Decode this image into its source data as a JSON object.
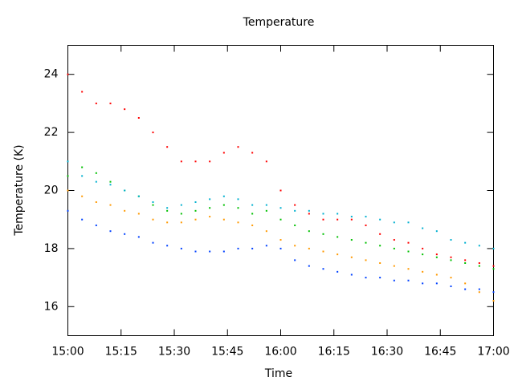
{
  "chart_data": {
    "type": "scatter",
    "title": "Temperature",
    "x_label": "Time",
    "y_label": "Temperature (K)",
    "x": [
      "15:00",
      "15:04",
      "15:08",
      "15:12",
      "15:16",
      "15:20",
      "15:24",
      "15:28",
      "15:32",
      "15:36",
      "15:40",
      "15:44",
      "15:48",
      "15:52",
      "15:56",
      "16:00",
      "16:04",
      "16:08",
      "16:12",
      "16:16",
      "16:20",
      "16:24",
      "16:28",
      "16:32",
      "16:36",
      "16:40",
      "16:44",
      "16:48",
      "16:52",
      "16:56",
      "17:00"
    ],
    "series": [
      {
        "color": "#ff0000",
        "values": [
          24,
          23.4,
          23,
          23,
          22.8,
          22.5,
          22,
          21.5,
          21,
          21,
          21,
          21.3,
          21.5,
          21.3,
          21,
          20,
          19.5,
          19.2,
          19,
          19,
          19,
          18.8,
          18.5,
          18.3,
          18.2,
          18,
          17.8,
          17.7,
          17.6,
          17.5,
          17.4
        ]
      },
      {
        "color": "#00c000",
        "values": [
          20.5,
          20.8,
          20.6,
          20.3,
          20,
          19.8,
          19.5,
          19.3,
          19.2,
          19.3,
          19.4,
          19.5,
          19.4,
          19.2,
          19.3,
          19,
          18.8,
          18.6,
          18.5,
          18.4,
          18.3,
          18.2,
          18.1,
          18,
          17.9,
          17.8,
          17.7,
          17.6,
          17.5,
          17.4,
          17.3
        ]
      },
      {
        "color": "#00b0d0",
        "values": [
          21,
          20.5,
          20.3,
          20.2,
          20,
          19.8,
          19.6,
          19.4,
          19.5,
          19.6,
          19.7,
          19.8,
          19.7,
          19.5,
          19.5,
          19.4,
          19.3,
          19.3,
          19.2,
          19.2,
          19.1,
          19.1,
          19,
          18.9,
          18.9,
          18.7,
          18.6,
          18.3,
          18.2,
          18.1,
          18
        ]
      },
      {
        "color": "#ff9900",
        "values": [
          20,
          19.8,
          19.6,
          19.5,
          19.3,
          19.2,
          19,
          18.9,
          18.9,
          19,
          19.1,
          19,
          18.9,
          18.8,
          18.6,
          18.3,
          18.1,
          18,
          17.9,
          17.8,
          17.7,
          17.6,
          17.5,
          17.4,
          17.3,
          17.2,
          17.1,
          17,
          16.8,
          16.5,
          16.2
        ]
      },
      {
        "color": "#0040ff",
        "values": [
          19.3,
          19,
          18.8,
          18.6,
          18.5,
          18.4,
          18.2,
          18.1,
          18,
          17.9,
          17.9,
          17.9,
          18,
          18,
          18.1,
          18,
          17.6,
          17.4,
          17.3,
          17.2,
          17.1,
          17,
          17,
          16.9,
          16.9,
          16.8,
          16.8,
          16.7,
          16.6,
          16.6,
          16.5
        ]
      }
    ],
    "xlim": [
      "15:00",
      "17:00"
    ],
    "xticks": [
      "15:00",
      "15:15",
      "15:30",
      "15:45",
      "16:00",
      "16:15",
      "16:30",
      "16:45",
      "17:00"
    ],
    "ylim": [
      15,
      25
    ],
    "yticks": [
      16,
      18,
      20,
      22,
      24
    ],
    "grid": false
  }
}
